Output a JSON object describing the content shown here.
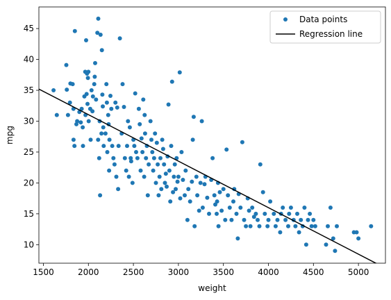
{
  "chart_data": {
    "type": "scatter",
    "title": "",
    "xlabel": "weight",
    "ylabel": "mpg",
    "xlim": [
      1450,
      5300
    ],
    "ylim": [
      7,
      48.5
    ],
    "xticks": [
      1500,
      2000,
      2500,
      3000,
      3500,
      4000,
      4500,
      5000
    ],
    "yticks": [
      10,
      15,
      20,
      25,
      30,
      35,
      40,
      45
    ],
    "grid": false,
    "legend_position": "top-right",
    "series": [
      {
        "name": "Data points",
        "kind": "scatter",
        "color": "#1f77b4",
        "points": [
          [
            1613,
            35.0
          ],
          [
            1649,
            31.0
          ],
          [
            1755,
            39.1
          ],
          [
            1760,
            35.1
          ],
          [
            1773,
            31.0
          ],
          [
            1795,
            33.0
          ],
          [
            1800,
            36.1
          ],
          [
            1825,
            36.0
          ],
          [
            1834,
            32.0
          ],
          [
            1835,
            27.0
          ],
          [
            1845,
            26.0
          ],
          [
            1850,
            44.6
          ],
          [
            1867,
            29.5
          ],
          [
            1875,
            30.0
          ],
          [
            1900,
            31.5
          ],
          [
            1915,
            29.8
          ],
          [
            1925,
            32.0
          ],
          [
            1937,
            29.0
          ],
          [
            1940,
            26.0
          ],
          [
            1955,
            34.0
          ],
          [
            1965,
            38.0
          ],
          [
            1968,
            31.0
          ],
          [
            1975,
            43.1
          ],
          [
            1980,
            34.4
          ],
          [
            1985,
            37.7
          ],
          [
            1990,
            32.8
          ],
          [
            1995,
            37.0
          ],
          [
            2000,
            38.0
          ],
          [
            2003,
            30.0
          ],
          [
            2020,
            32.0
          ],
          [
            2025,
            27.0
          ],
          [
            2035,
            35.0
          ],
          [
            2045,
            31.6
          ],
          [
            2050,
            34.0
          ],
          [
            2065,
            36.0
          ],
          [
            2070,
            37.2
          ],
          [
            2075,
            39.4
          ],
          [
            2085,
            33.5
          ],
          [
            2100,
            44.3
          ],
          [
            2108,
            27.0
          ],
          [
            2110,
            46.6
          ],
          [
            2120,
            24.0
          ],
          [
            2125,
            30.0
          ],
          [
            2130,
            18.0
          ],
          [
            2135,
            44.0
          ],
          [
            2145,
            28.0
          ],
          [
            2150,
            41.5
          ],
          [
            2155,
            34.3
          ],
          [
            2160,
            32.4
          ],
          [
            2165,
            29.0
          ],
          [
            2170,
            26.0
          ],
          [
            2190,
            28.0
          ],
          [
            2200,
            36.0
          ],
          [
            2205,
            33.0
          ],
          [
            2210,
            25.0
          ],
          [
            2220,
            31.0
          ],
          [
            2225,
            29.5
          ],
          [
            2230,
            22.0
          ],
          [
            2234,
            27.0
          ],
          [
            2245,
            34.1
          ],
          [
            2255,
            32.0
          ],
          [
            2265,
            26.0
          ],
          [
            2278,
            24.0
          ],
          [
            2290,
            23.0
          ],
          [
            2300,
            33.0
          ],
          [
            2310,
            21.0
          ],
          [
            2320,
            32.2
          ],
          [
            2330,
            19.0
          ],
          [
            2335,
            26.0
          ],
          [
            2350,
            43.4
          ],
          [
            2370,
            28.0
          ],
          [
            2380,
            36.0
          ],
          [
            2395,
            32.3
          ],
          [
            2405,
            24.0
          ],
          [
            2420,
            22.0
          ],
          [
            2430,
            26.0
          ],
          [
            2440,
            30.0
          ],
          [
            2450,
            21.0
          ],
          [
            2460,
            29.0
          ],
          [
            2470,
            24.0
          ],
          [
            2475,
            23.5
          ],
          [
            2490,
            20.0
          ],
          [
            2500,
            27.0
          ],
          [
            2510,
            26.0
          ],
          [
            2520,
            34.5
          ],
          [
            2530,
            25.0
          ],
          [
            2545,
            24.0
          ],
          [
            2560,
            32.0
          ],
          [
            2570,
            29.5
          ],
          [
            2580,
            22.0
          ],
          [
            2590,
            27.2
          ],
          [
            2600,
            25.0
          ],
          [
            2610,
            33.5
          ],
          [
            2620,
            21.0
          ],
          [
            2625,
            31.0
          ],
          [
            2630,
            28.0
          ],
          [
            2640,
            24.0
          ],
          [
            2650,
            26.0
          ],
          [
            2660,
            18.0
          ],
          [
            2670,
            23.0
          ],
          [
            2690,
            30.0
          ],
          [
            2700,
            27.0
          ],
          [
            2710,
            25.0
          ],
          [
            2720,
            22.0
          ],
          [
            2730,
            24.0
          ],
          [
            2740,
            28.0
          ],
          [
            2750,
            20.0
          ],
          [
            2760,
            26.5
          ],
          [
            2770,
            23.0
          ],
          [
            2780,
            18.0
          ],
          [
            2790,
            21.0
          ],
          [
            2800,
            24.0
          ],
          [
            2810,
            19.0
          ],
          [
            2820,
            27.0
          ],
          [
            2830,
            25.5
          ],
          [
            2840,
            23.0
          ],
          [
            2850,
            20.0
          ],
          [
            2860,
            21.5
          ],
          [
            2870,
            19.4
          ],
          [
            2880,
            24.3
          ],
          [
            2890,
            32.7
          ],
          [
            2900,
            22.0
          ],
          [
            2910,
            17.0
          ],
          [
            2920,
            26.0
          ],
          [
            2930,
            36.4
          ],
          [
            2940,
            18.5
          ],
          [
            2950,
            21.0
          ],
          [
            2960,
            23.0
          ],
          [
            2970,
            19.0
          ],
          [
            2980,
            24.0
          ],
          [
            2990,
            20.2
          ],
          [
            3000,
            21.0
          ],
          [
            3015,
            37.9
          ],
          [
            3020,
            17.5
          ],
          [
            3035,
            25.0
          ],
          [
            3050,
            20.5
          ],
          [
            3070,
            18.0
          ],
          [
            3080,
            22.0
          ],
          [
            3100,
            14.0
          ],
          [
            3110,
            19.0
          ],
          [
            3130,
            17.0
          ],
          [
            3150,
            20.2
          ],
          [
            3160,
            27.0
          ],
          [
            3170,
            30.7
          ],
          [
            3180,
            13.0
          ],
          [
            3200,
            21.0
          ],
          [
            3210,
            18.0
          ],
          [
            3230,
            15.5
          ],
          [
            3245,
            20.0
          ],
          [
            3260,
            30.0
          ],
          [
            3270,
            16.0
          ],
          [
            3290,
            19.8
          ],
          [
            3300,
            21.0
          ],
          [
            3320,
            17.6
          ],
          [
            3340,
            15.0
          ],
          [
            3365,
            20.5
          ],
          [
            3380,
            24.0
          ],
          [
            3400,
            18.0
          ],
          [
            3410,
            16.5
          ],
          [
            3425,
            15.0
          ],
          [
            3430,
            17.0
          ],
          [
            3440,
            20.0
          ],
          [
            3445,
            13.0
          ],
          [
            3460,
            18.5
          ],
          [
            3480,
            15.5
          ],
          [
            3500,
            19.0
          ],
          [
            3520,
            14.0
          ],
          [
            3535,
            25.4
          ],
          [
            3550,
            18.0
          ],
          [
            3570,
            16.0
          ],
          [
            3590,
            14.0
          ],
          [
            3610,
            17.0
          ],
          [
            3620,
            19.0
          ],
          [
            3645,
            15.0
          ],
          [
            3660,
            11.0
          ],
          [
            3670,
            18.2
          ],
          [
            3690,
            16.0
          ],
          [
            3710,
            26.6
          ],
          [
            3730,
            14.0
          ],
          [
            3750,
            13.0
          ],
          [
            3770,
            17.5
          ],
          [
            3785,
            15.5
          ],
          [
            3800,
            13.0
          ],
          [
            3820,
            16.0
          ],
          [
            3840,
            14.5
          ],
          [
            3860,
            15.0
          ],
          [
            3880,
            14.0
          ],
          [
            3900,
            13.0
          ],
          [
            3910,
            23.0
          ],
          [
            3940,
            18.5
          ],
          [
            3960,
            15.0
          ],
          [
            3990,
            13.0
          ],
          [
            4000,
            14.0
          ],
          [
            4020,
            17.0
          ],
          [
            4060,
            15.0
          ],
          [
            4080,
            13.0
          ],
          [
            4100,
            14.0
          ],
          [
            4130,
            12.0
          ],
          [
            4140,
            15.0
          ],
          [
            4160,
            16.0
          ],
          [
            4190,
            14.0
          ],
          [
            4220,
            13.0
          ],
          [
            4230,
            15.0
          ],
          [
            4250,
            16.0
          ],
          [
            4280,
            14.0
          ],
          [
            4300,
            13.0
          ],
          [
            4320,
            15.0
          ],
          [
            4340,
            12.0
          ],
          [
            4360,
            14.0
          ],
          [
            4380,
            13.0
          ],
          [
            4400,
            16.0
          ],
          [
            4420,
            10.0
          ],
          [
            4440,
            14.0
          ],
          [
            4460,
            15.0
          ],
          [
            4480,
            13.0
          ],
          [
            4500,
            14.0
          ],
          [
            4520,
            13.0
          ],
          [
            4640,
            10.0
          ],
          [
            4660,
            13.0
          ],
          [
            4690,
            16.0
          ],
          [
            4720,
            11.0
          ],
          [
            4740,
            9.0
          ],
          [
            4760,
            13.0
          ],
          [
            4950,
            12.0
          ],
          [
            4980,
            12.0
          ],
          [
            5000,
            11.0
          ],
          [
            5140,
            13.0
          ]
        ]
      },
      {
        "name": "Regression line",
        "kind": "line",
        "color": "#000000",
        "points": [
          [
            1450,
            35.2
          ],
          [
            5300,
            6.2
          ]
        ]
      }
    ]
  }
}
